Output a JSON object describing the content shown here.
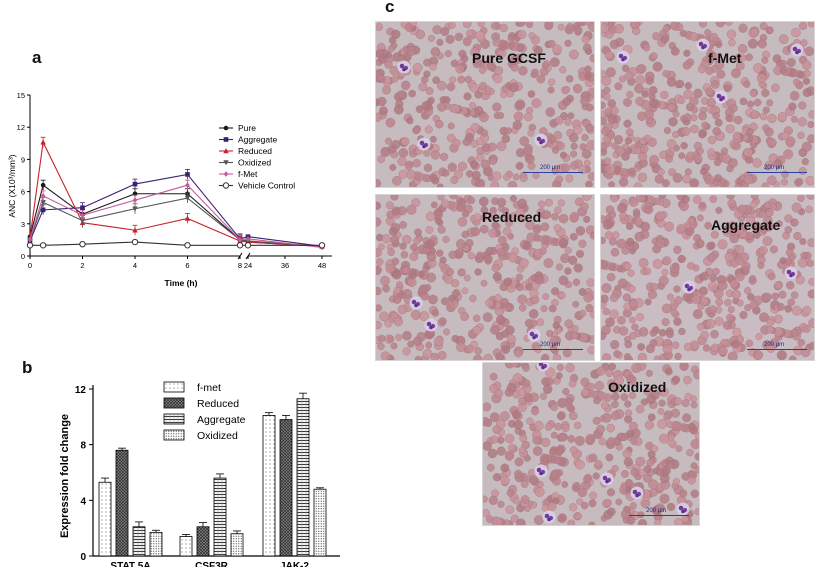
{
  "panels": {
    "a": "a",
    "b": "b",
    "c": "c"
  },
  "chart_data": [
    {
      "type": "line",
      "panel": "a",
      "xlabel": "Time (h)",
      "ylabel": "ANC (X10³/mm³)",
      "x_ticks": [
        "0",
        "2",
        "4",
        "6",
        "8",
        "24",
        "36",
        "48"
      ],
      "y_ticks": [
        "0",
        "3",
        "6",
        "9",
        "12",
        "15"
      ],
      "ylim": [
        0,
        15
      ],
      "x": [
        0,
        0.5,
        2,
        4,
        6,
        8,
        24,
        48
      ],
      "legend_position": "right",
      "series": [
        {
          "name": "Pure",
          "color": "#1a1a1a",
          "marker": "circle",
          "values": [
            1.8,
            6.6,
            3.9,
            5.8,
            5.8,
            1.5,
            1.3,
            0.9
          ]
        },
        {
          "name": "Aggregate",
          "color": "#3a1f74",
          "marker": "square",
          "values": [
            1.4,
            4.3,
            4.5,
            6.7,
            7.6,
            1.6,
            1.8,
            0.9
          ]
        },
        {
          "name": "Reduced",
          "color": "#c9222c",
          "marker": "triangle-up",
          "values": [
            1.7,
            10.6,
            3.1,
            2.4,
            3.5,
            1.4,
            1.3,
            0.9
          ]
        },
        {
          "name": "Oxidized",
          "color": "#555555",
          "marker": "triangle-down",
          "values": [
            1.5,
            5.0,
            3.3,
            4.4,
            5.4,
            1.5,
            1.4,
            0.9
          ]
        },
        {
          "name": "f-Met",
          "color": "#c85a9c",
          "marker": "diamond",
          "values": [
            1.5,
            5.6,
            3.8,
            5.2,
            6.6,
            1.5,
            1.6,
            0.8
          ]
        },
        {
          "name": "Vehicle Control",
          "color": "#333333",
          "marker": "open-circle",
          "values": [
            1.0,
            1.0,
            1.1,
            1.3,
            1.0,
            1.0,
            1.0,
            1.0
          ]
        }
      ]
    },
    {
      "type": "bar",
      "panel": "b",
      "xlabel": "",
      "ylabel": "Expression fold change",
      "categories": [
        "STAT 5A",
        "CSF3R",
        "JAK-2"
      ],
      "y_ticks": [
        "0",
        "4",
        "8",
        "12"
      ],
      "ylim": [
        0,
        12
      ],
      "legend_position": "top-center",
      "series": [
        {
          "name": "f-met",
          "pattern": "dots",
          "values": [
            5.3,
            1.4,
            10.1
          ],
          "errors": [
            0.3,
            0.15,
            0.2
          ]
        },
        {
          "name": "Reduced",
          "pattern": "cross",
          "values": [
            7.6,
            2.1,
            9.8
          ],
          "errors": [
            0.15,
            0.3,
            0.3
          ]
        },
        {
          "name": "Aggregate",
          "pattern": "hlines",
          "values": [
            2.1,
            5.6,
            11.3
          ],
          "errors": [
            0.35,
            0.3,
            0.4
          ]
        },
        {
          "name": "Oxidized",
          "pattern": "dense-dots",
          "values": [
            1.7,
            1.6,
            4.8
          ],
          "errors": [
            0.15,
            0.2,
            0.1
          ]
        }
      ]
    }
  ],
  "micrographs": [
    {
      "label": "Pure GCSF",
      "scale": "200 μm"
    },
    {
      "label": "f-Met",
      "scale": "200 μm"
    },
    {
      "label": "Reduced",
      "scale": "200 μm"
    },
    {
      "label": "Aggregate",
      "scale": "200 μm"
    },
    {
      "label": "Oxidized",
      "scale": "200 μm"
    }
  ]
}
